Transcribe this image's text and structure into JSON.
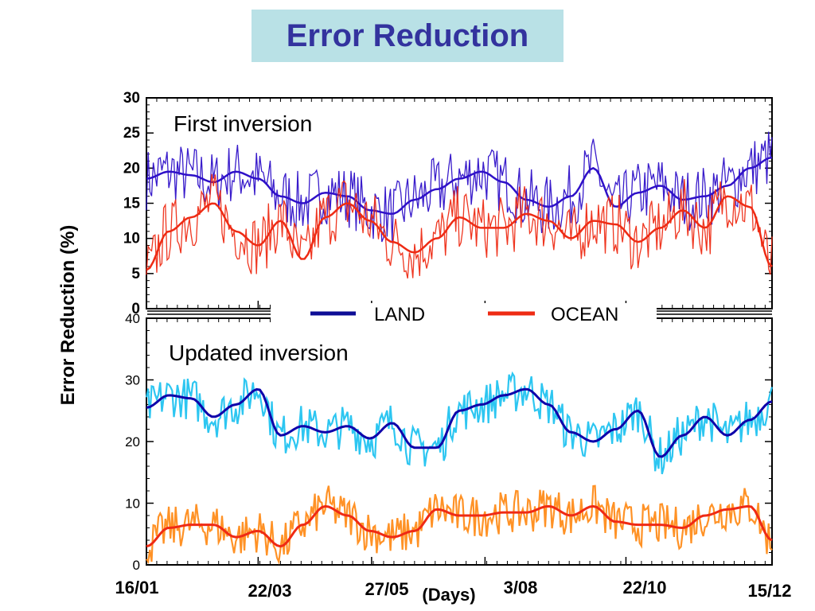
{
  "title": "Error Reduction",
  "chart_data": [
    {
      "panel_label": "First inversion",
      "type": "line",
      "ylabel": "Error Reduction (%)",
      "xlabel": "(Days)",
      "ylim": [
        0,
        30
      ],
      "yticks": [
        "0",
        "5",
        "10",
        "15",
        "20",
        "25",
        "30"
      ],
      "x_tick_labels": [
        "16/01",
        "22/03",
        "27/05",
        "3/08",
        "22/10",
        "15/12"
      ],
      "x": [
        0,
        15,
        30,
        45,
        60,
        75,
        90,
        105,
        120,
        135,
        150,
        165,
        180,
        195,
        210,
        225,
        240,
        255,
        270,
        285,
        300,
        315,
        330,
        345,
        360
      ],
      "legend": {
        "placement": "bottom",
        "entries": [
          "LAND",
          "OCEAN"
        ]
      },
      "series": [
        {
          "name": "LAND",
          "color": "#2e10c8",
          "values": [
            18.5,
            19.5,
            19.0,
            18.0,
            19.5,
            18.5,
            16.0,
            15.0,
            16.5,
            16.0,
            14.0,
            13.5,
            15.5,
            17.0,
            18.5,
            19.5,
            18.0,
            15.5,
            14.5,
            16.0,
            20.0,
            14.5,
            16.5,
            17.5,
            15.5,
            16.0,
            17.5,
            20.0,
            21.5
          ],
          "x": [
            0,
            13,
            26,
            39,
            52,
            65,
            78,
            91,
            104,
            117,
            130,
            143,
            156,
            169,
            182,
            195,
            208,
            221,
            234,
            247,
            260,
            273,
            286,
            299,
            312,
            325,
            338,
            351,
            364
          ]
        },
        {
          "name": "OCEAN",
          "color": "#ee2b14",
          "values": [
            5.5,
            11.0,
            13.0,
            15.0,
            11.0,
            9.0,
            12.5,
            7.0,
            13.0,
            15.0,
            12.5,
            9.5,
            8.0,
            10.0,
            13.0,
            11.5,
            11.5,
            13.5,
            12.5,
            10.0,
            12.5,
            12.0,
            9.5,
            11.5,
            14.0,
            11.5,
            16.0,
            14.5,
            6.0
          ],
          "x": [
            0,
            13,
            26,
            39,
            52,
            65,
            78,
            91,
            104,
            117,
            130,
            143,
            156,
            169,
            182,
            195,
            208,
            221,
            234,
            247,
            260,
            273,
            286,
            299,
            312,
            325,
            338,
            351,
            364
          ]
        }
      ]
    },
    {
      "panel_label": "Updated inversion",
      "type": "line",
      "ylim": [
        0,
        40
      ],
      "yticks": [
        "0",
        "10",
        "20",
        "30",
        "40"
      ],
      "series": [
        {
          "name": "LAND",
          "color": "#0e00aa",
          "raw_color": "#22c3f0",
          "values": [
            25.5,
            27.5,
            27.0,
            24.0,
            26.0,
            28.5,
            21.0,
            22.5,
            21.5,
            22.5,
            20.5,
            23.0,
            19.0,
            19.0,
            25.0,
            26.0,
            27.5,
            28.5,
            26.0,
            21.5,
            20.0,
            22.0,
            25.0,
            17.5,
            21.0,
            24.0,
            21.0,
            23.5,
            26.5
          ],
          "x": [
            0,
            13,
            26,
            39,
            52,
            65,
            78,
            91,
            104,
            117,
            130,
            143,
            156,
            169,
            182,
            195,
            208,
            221,
            234,
            247,
            260,
            273,
            286,
            299,
            312,
            325,
            338,
            351,
            364
          ]
        },
        {
          "name": "OCEAN",
          "color": "#ef2a14",
          "raw_color": "#ff8c1a",
          "values": [
            3.0,
            6.0,
            6.5,
            6.5,
            4.5,
            5.5,
            3.0,
            6.5,
            9.5,
            8.0,
            5.5,
            4.5,
            5.5,
            9.0,
            8.0,
            8.0,
            8.5,
            8.5,
            9.5,
            8.0,
            9.5,
            7.0,
            6.5,
            6.5,
            6.0,
            8.0,
            9.0,
            9.5,
            4.0
          ],
          "x": [
            0,
            13,
            26,
            39,
            52,
            65,
            78,
            91,
            104,
            117,
            130,
            143,
            156,
            169,
            182,
            195,
            208,
            221,
            234,
            247,
            260,
            273,
            286,
            299,
            312,
            325,
            338,
            351,
            364
          ]
        }
      ]
    }
  ]
}
